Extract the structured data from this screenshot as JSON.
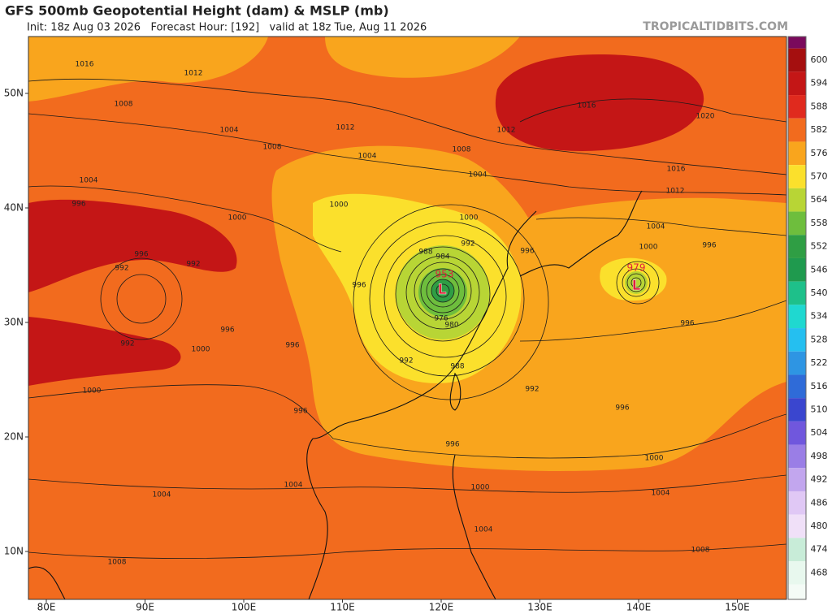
{
  "header": {
    "title": "GFS 500mb Geopotential Height (dam) & MSLP (mb)",
    "subtitle": "Init: 18z Aug 03 2026   Forecast Hour: [192]   valid at 18z Tue, Aug 11 2026",
    "credit": "TROPICALTIDBITS.COM"
  },
  "map": {
    "lat_labels": [
      "50N",
      "40N",
      "30N",
      "20N",
      "10N"
    ],
    "lon_labels": [
      "80E",
      "90E",
      "100E",
      "110E",
      "120E",
      "130E",
      "140E",
      "150E"
    ],
    "isobar_labels": [
      "1016",
      "1012",
      "1008",
      "1004",
      "1008",
      "1012",
      "1004",
      "1008",
      "1004",
      "1012",
      "1016",
      "1020",
      "1016",
      "1012",
      "1004",
      "1000",
      "996",
      "1004",
      "996",
      "1000",
      "992",
      "996",
      "992",
      "996",
      "1000",
      "996",
      "1000",
      "1000",
      "992",
      "988",
      "984",
      "996",
      "996",
      "992",
      "988",
      "980",
      "976",
      "992",
      "996",
      "996",
      "1000",
      "1004",
      "1000",
      "996",
      "1004",
      "1004",
      "1004",
      "1008",
      "1008",
      "1000",
      "996",
      "992"
    ],
    "lows": [
      {
        "pressure": "953",
        "label": "L"
      },
      {
        "pressure": "979",
        "label": "L"
      }
    ]
  },
  "colorbar": {
    "labels": [
      600,
      594,
      588,
      582,
      576,
      570,
      564,
      558,
      552,
      546,
      540,
      534,
      528,
      522,
      516,
      510,
      504,
      498,
      492,
      486,
      480,
      474,
      468
    ],
    "colors": [
      "#7a0a5c",
      "#a50f0f",
      "#c41616",
      "#e02a1e",
      "#f26b1e",
      "#f9a51d",
      "#fbe02c",
      "#b8d535",
      "#6ebe3d",
      "#2f9e44",
      "#1f9a4e",
      "#1ec08a",
      "#1fd8d0",
      "#25bff0",
      "#2e95e3",
      "#2f6bd8",
      "#3a46cf",
      "#7057dd",
      "#9a7ee6",
      "#c2a6ee",
      "#e0c8f5",
      "#f0e0f8",
      "#c8ecd8",
      "#e8f8ee",
      "#f4fbf6"
    ]
  }
}
